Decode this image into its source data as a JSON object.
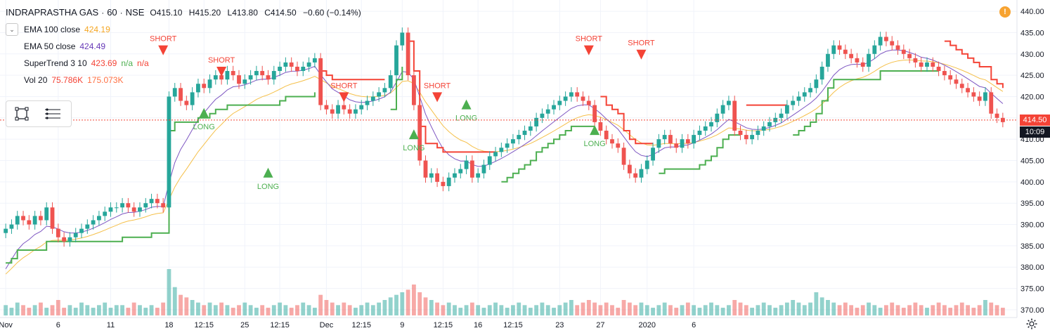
{
  "header": {
    "title": "INDRAPRASTHA GAS",
    "interval": "60",
    "exchange": "NSE",
    "separator": "·",
    "ohlc": {
      "o": "O415.10",
      "h": "H415.20",
      "l": "L413.80",
      "c": "C414.50",
      "chg": "−0.60 (−0.14%)"
    }
  },
  "indicators": [
    {
      "name": "EMA 100 close",
      "values": [
        "424.19"
      ],
      "color": "#f5a623"
    },
    {
      "name": "EMA 50 close",
      "values": [
        "424.49"
      ],
      "color": "#673ab7"
    },
    {
      "name": "SuperTrend 3 10",
      "values": [
        "423.69",
        "n/a",
        "n/a"
      ],
      "colors": [
        "#f44336",
        "#4caf50",
        "#f44336"
      ]
    },
    {
      "name": "Vol 20",
      "values": [
        "75.786K",
        "175.073K"
      ],
      "colors": [
        "#f44336",
        "#ff7043"
      ]
    }
  ],
  "current_price": {
    "label": "414.50",
    "timer": "10:09",
    "color": "#f44336",
    "timer_color": "#131722"
  },
  "chart_data": {
    "type": "candlestick",
    "title": "INDRAPRASTHA GAS · 60 · NSE",
    "ylim": [
      369,
      441
    ],
    "y_ticks": [
      "370.00",
      "375.00",
      "380.00",
      "385.00",
      "390.00",
      "395.00",
      "400.00",
      "405.00",
      "410.00",
      "415.00",
      "420.00",
      "425.00",
      "430.00",
      "435.00",
      "440.00"
    ],
    "x_ticks": [
      {
        "label": "Nov",
        "x": 0
      },
      {
        "label": "6",
        "x": 9
      },
      {
        "label": "11",
        "x": 18
      },
      {
        "label": "18",
        "x": 28
      },
      {
        "label": "12:15",
        "x": 34
      },
      {
        "label": "25",
        "x": 41
      },
      {
        "label": "12:15",
        "x": 47
      },
      {
        "label": "Dec",
        "x": 55
      },
      {
        "label": "12:15",
        "x": 61
      },
      {
        "label": "9",
        "x": 68
      },
      {
        "label": "12:15",
        "x": 75
      },
      {
        "label": "16",
        "x": 81
      },
      {
        "label": "12:15",
        "x": 87
      },
      {
        "label": "23",
        "x": 95
      },
      {
        "label": "27",
        "x": 102
      },
      {
        "label": "2020",
        "x": 110
      },
      {
        "label": "6",
        "x": 118
      }
    ],
    "closes": [
      389,
      390,
      392,
      391,
      390,
      392,
      391,
      394,
      389,
      387,
      386,
      387,
      388,
      389,
      390,
      391,
      392,
      393,
      394,
      394,
      395,
      394,
      393,
      394,
      395,
      396,
      395,
      394,
      420,
      422,
      419,
      418,
      421,
      423,
      422,
      424,
      425,
      424,
      426,
      425,
      423,
      424,
      425,
      426,
      425,
      424,
      426,
      427,
      428,
      427,
      426,
      427,
      428,
      429,
      418,
      417,
      416,
      418,
      417,
      416,
      417,
      418,
      419,
      420,
      421,
      422,
      425,
      432,
      435,
      425,
      418,
      405,
      401,
      402,
      400,
      399,
      401,
      402,
      403,
      405,
      401,
      402,
      404,
      406,
      407,
      408,
      409,
      410,
      411,
      412,
      413,
      415,
      416,
      417,
      418,
      419,
      420,
      421,
      420,
      419,
      418,
      414,
      412,
      410,
      409,
      408,
      404,
      402,
      401,
      403,
      405,
      408,
      410,
      411,
      409,
      408,
      410,
      409,
      411,
      412,
      413,
      414,
      416,
      418,
      419,
      412,
      411,
      410,
      411,
      412,
      413,
      414,
      415,
      416,
      418,
      419,
      420,
      421,
      422,
      424,
      427,
      430,
      432,
      431,
      430,
      429,
      428,
      427,
      430,
      432,
      434,
      433,
      432,
      431,
      430,
      429,
      428,
      427,
      428,
      427,
      426,
      425,
      424,
      423,
      422,
      421,
      420,
      419,
      421,
      416,
      415,
      414
    ],
    "volumes": [
      4,
      3,
      5,
      4,
      3,
      4,
      5,
      3,
      4,
      6,
      3,
      4,
      3,
      5,
      4,
      3,
      4,
      5,
      3,
      4,
      4,
      3,
      5,
      4,
      3,
      4,
      3,
      5,
      18,
      11,
      8,
      7,
      6,
      5,
      4,
      5,
      4,
      5,
      4,
      3,
      4,
      5,
      4,
      3,
      4,
      3,
      4,
      5,
      4,
      3,
      4,
      5,
      4,
      3,
      8,
      6,
      5,
      4,
      5,
      4,
      3,
      4,
      5,
      4,
      5,
      6,
      7,
      8,
      9,
      10,
      12,
      9,
      7,
      6,
      5,
      4,
      5,
      4,
      3,
      4,
      5,
      4,
      3,
      4,
      5,
      4,
      3,
      4,
      5,
      4,
      3,
      4,
      5,
      4,
      3,
      4,
      5,
      6,
      4,
      5,
      6,
      5,
      4,
      5,
      4,
      3,
      6,
      5,
      4,
      5,
      4,
      3,
      4,
      5,
      4,
      3,
      4,
      5,
      4,
      3,
      4,
      5,
      4,
      3,
      4,
      6,
      5,
      4,
      3,
      4,
      5,
      4,
      3,
      4,
      5,
      6,
      5,
      4,
      5,
      9,
      7,
      6,
      5,
      4,
      5,
      4,
      3,
      4,
      5,
      4,
      3,
      4,
      5,
      4,
      3,
      4,
      5,
      4,
      3,
      4,
      5,
      4,
      3,
      4,
      5,
      4,
      3,
      4,
      6,
      5,
      4,
      3
    ],
    "supertrend_long_label": "LONG",
    "supertrend_short_label": "SHORT",
    "signals": [
      {
        "type": "SHORT",
        "i": 27,
        "price": 432
      },
      {
        "type": "LONG",
        "i": 34,
        "price": 415
      },
      {
        "type": "SHORT",
        "i": 37,
        "price": 427
      },
      {
        "type": "LONG",
        "i": 45,
        "price": 401
      },
      {
        "type": "SHORT",
        "i": 58,
        "price": 421
      },
      {
        "type": "LONG",
        "i": 70,
        "price": 410
      },
      {
        "type": "SHORT",
        "i": 74,
        "price": 421
      },
      {
        "type": "LONG",
        "i": 79,
        "price": 417
      },
      {
        "type": "SHORT",
        "i": 100,
        "price": 432
      },
      {
        "type": "LONG",
        "i": 101,
        "price": 411
      },
      {
        "type": "SHORT",
        "i": 109,
        "price": 431
      }
    ]
  }
}
